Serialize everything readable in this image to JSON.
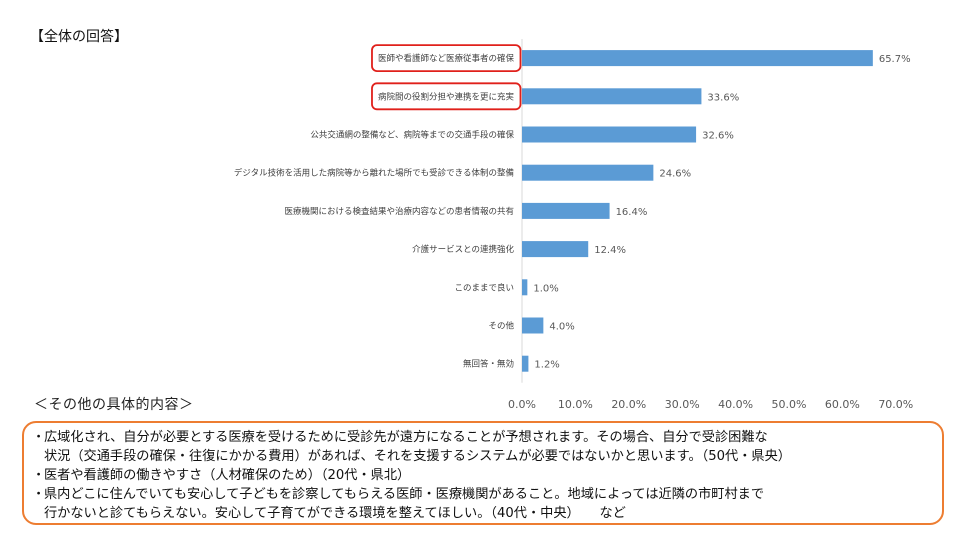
{
  "header": {
    "title": "【全体の回答】"
  },
  "chart_data": {
    "type": "bar",
    "orientation": "horizontal",
    "title": "",
    "xlabel": "",
    "ylabel": "",
    "xlim": [
      0,
      70
    ],
    "x_ticks": [
      "0.0%",
      "10.0%",
      "20.0%",
      "30.0%",
      "40.0%",
      "50.0%",
      "60.0%",
      "70.0%"
    ],
    "grid": false,
    "bar_color": "#5b9bd5",
    "highlight_color": "#e0201b",
    "categories": [
      "医師や看護師など医療従事者の確保",
      "病院間の役割分担や連携を更に充実",
      "公共交通網の整備など、病院等までの交通手段の確保",
      "デジタル技術を活用した病院等から離れた場所でも受診できる体制の整備",
      "医療機関における検査結果や治療内容などの患者情報の共有",
      "介護サービスとの連携強化",
      "このままで良い",
      "その他",
      "無回答・無効"
    ],
    "values": [
      65.7,
      33.6,
      32.6,
      24.6,
      16.4,
      12.4,
      1.0,
      4.0,
      1.2
    ],
    "value_labels": [
      "65.7%",
      "33.6%",
      "32.6%",
      "24.6%",
      "16.4%",
      "12.4%",
      "1.0%",
      "4.0%",
      "1.2%"
    ],
    "highlighted": [
      true,
      true,
      false,
      false,
      false,
      false,
      false,
      false,
      false
    ]
  },
  "other_section": {
    "heading": "＜その他の具体的内容＞",
    "bullet": "・",
    "items": [
      "広域化され、自分が必要とする医療を受けるために受診先が遠方になることが予想されます。その場合、自分で受診困難な\n状況（交通手段の確保・往復にかかる費用）があれば、それを支援するシステムが必要ではないかと思います。（50代・県央）",
      "医者や看護師の働きやすさ（人材確保のため）（20代・県北）",
      "県内どこに住んでいても安心して子どもを診察してもらえる医師・医療機関があること。地域によっては近隣の市町村まで\n行かないと診てもらえない。安心して子育てができる環境を整えてほしい。（40代・中央）　　など"
    ]
  }
}
